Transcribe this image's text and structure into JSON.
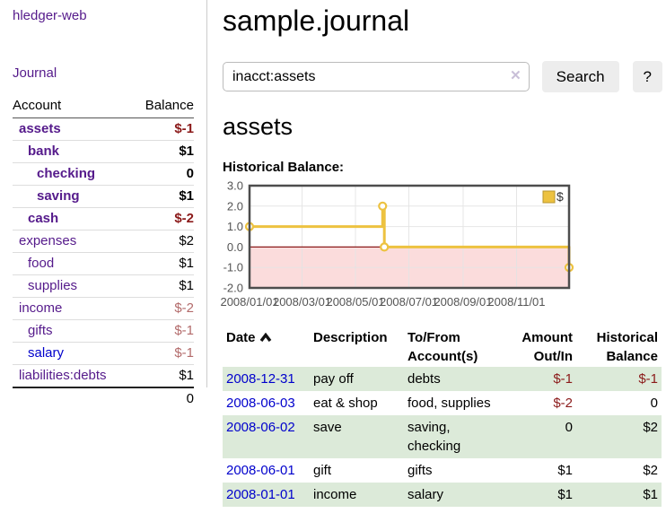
{
  "app": {
    "title": "hledger-web"
  },
  "nav": {
    "journal": "Journal"
  },
  "colors": {
    "link_purple": "#551a8b",
    "link_blue": "#0000cc",
    "negative": "#8b1a1a",
    "dim_negative": "#b36b6b",
    "row_stripe_green": "#dcead9",
    "series_gold": "#edc240"
  },
  "sidebar": {
    "headers": {
      "account": "Account",
      "balance": "Balance"
    },
    "accounts": [
      {
        "account": "assets",
        "balance": "$-1",
        "depth": 0,
        "bold": true,
        "neg": true,
        "dim": false,
        "blue": false
      },
      {
        "account": "bank",
        "balance": "$1",
        "depth": 1,
        "bold": true,
        "neg": false,
        "dim": false,
        "blue": false
      },
      {
        "account": "checking",
        "balance": "0",
        "depth": 2,
        "bold": true,
        "neg": false,
        "dim": false,
        "blue": false
      },
      {
        "account": "saving",
        "balance": "$1",
        "depth": 2,
        "bold": true,
        "neg": false,
        "dim": false,
        "blue": false
      },
      {
        "account": "cash",
        "balance": "$-2",
        "depth": 1,
        "bold": true,
        "neg": true,
        "dim": false,
        "blue": false
      },
      {
        "account": "expenses",
        "balance": "$2",
        "depth": 0,
        "bold": false,
        "neg": false,
        "dim": false,
        "blue": false
      },
      {
        "account": "food",
        "balance": "$1",
        "depth": 1,
        "bold": false,
        "neg": false,
        "dim": false,
        "blue": false
      },
      {
        "account": "supplies",
        "balance": "$1",
        "depth": 1,
        "bold": false,
        "neg": false,
        "dim": false,
        "blue": false
      },
      {
        "account": "income",
        "balance": "$-2",
        "depth": 0,
        "bold": false,
        "neg": true,
        "dim": true,
        "blue": false
      },
      {
        "account": "gifts",
        "balance": "$-1",
        "depth": 1,
        "bold": false,
        "neg": true,
        "dim": true,
        "blue": false
      },
      {
        "account": "salary",
        "balance": "$-1",
        "depth": 1,
        "bold": false,
        "neg": true,
        "dim": true,
        "blue": true
      },
      {
        "account": "liabilities:debts",
        "balance": "$1",
        "depth": 0,
        "bold": false,
        "neg": false,
        "dim": false,
        "blue": false
      }
    ],
    "total": "0"
  },
  "header": {
    "title": "sample.journal"
  },
  "search": {
    "value": "inacct:assets",
    "clear_icon": "✕",
    "search_button": "Search",
    "help_button": "?"
  },
  "main": {
    "account_heading": "assets",
    "chart_title": "Historical Balance:"
  },
  "chart_data": {
    "type": "line",
    "step": true,
    "title": "Historical Balance",
    "x_start": "2008-01-01",
    "x_end": "2008-12-31",
    "xticks": [
      {
        "date": "2008-01-01",
        "label": "2008/01/01"
      },
      {
        "date": "2008-03-01",
        "label": "2008/03/01"
      },
      {
        "date": "2008-05-01",
        "label": "2008/05/01"
      },
      {
        "date": "2008-07-01",
        "label": "2008/07/01"
      },
      {
        "date": "2008-09-01",
        "label": "2008/09/01"
      },
      {
        "date": "2008-11-01",
        "label": "2008/11/01"
      }
    ],
    "yticks": [
      3.0,
      2.0,
      1.0,
      0.0,
      -1.0,
      -2.0
    ],
    "ylim": [
      -2,
      3
    ],
    "series": [
      {
        "name": "$",
        "color": "#edc240",
        "points": [
          {
            "date": "2008-01-01",
            "value": 1
          },
          {
            "date": "2008-06-01",
            "value": 2
          },
          {
            "date": "2008-06-03",
            "value": 0
          },
          {
            "date": "2008-12-31",
            "value": -1
          }
        ]
      }
    ],
    "legend": {
      "label": "$",
      "position": "top-right"
    },
    "negative_region_color": "#fbdcdc",
    "zero_line_color": "#8b1a1a",
    "grid_color": "#e3e3e3",
    "border_color": "#4d4d4d"
  },
  "register": {
    "headers": {
      "date": "Date",
      "description": "Description",
      "accounts": "To/From Account(s)",
      "amount": "Amount Out/In",
      "balance": "Historical Balance"
    },
    "rows": [
      {
        "date": "2008-12-31",
        "description": "pay off",
        "accounts": "debts",
        "amount": "$-1",
        "balance": "$-1"
      },
      {
        "date": "2008-06-03",
        "description": "eat & shop",
        "accounts": "food, supplies",
        "amount": "$-2",
        "balance": "0"
      },
      {
        "date": "2008-06-02",
        "description": "save",
        "accounts": "saving, checking",
        "amount": "0",
        "balance": "$2"
      },
      {
        "date": "2008-06-01",
        "description": "gift",
        "accounts": "gifts",
        "amount": "$1",
        "balance": "$2"
      },
      {
        "date": "2008-01-01",
        "description": "income",
        "accounts": "salary",
        "amount": "$1",
        "balance": "$1"
      }
    ]
  }
}
